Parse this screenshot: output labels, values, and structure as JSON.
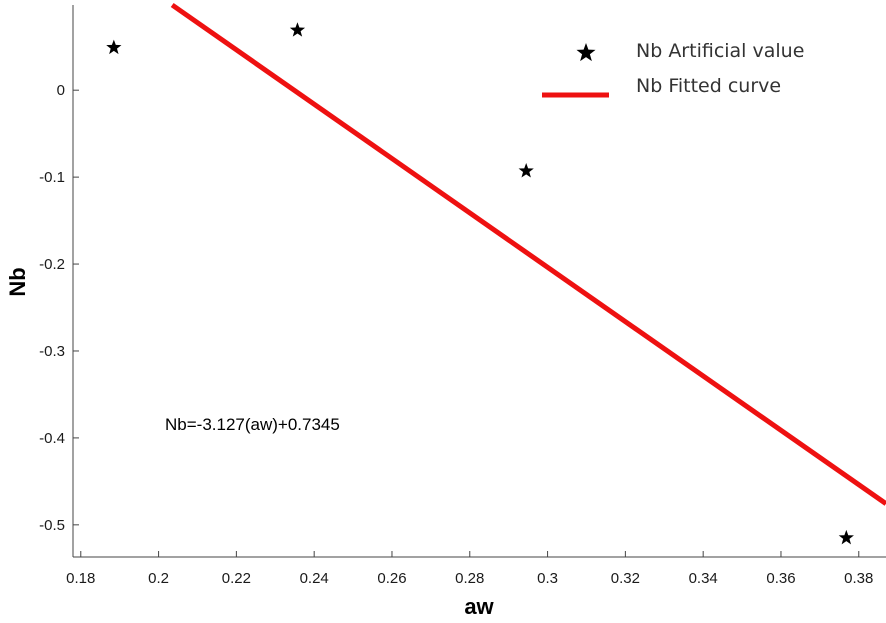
{
  "chart_data": {
    "type": "scatter",
    "xlabel": "aw",
    "ylabel": "Nb",
    "xlim": [
      0.178,
      0.387
    ],
    "ylim": [
      -0.537,
      0.098
    ],
    "x_ticks": [
      0.18,
      0.2,
      0.22,
      0.24,
      0.26,
      0.28,
      0.3,
      0.32,
      0.34,
      0.36,
      0.38
    ],
    "y_ticks": [
      0,
      -0.1,
      -0.2,
      -0.3,
      -0.4,
      -0.5
    ],
    "x_tick_labels": [
      "0.18",
      "0.2",
      "0.22",
      "0.24",
      "0.26",
      "0.28",
      "0.3",
      "0.32",
      "0.34",
      "0.36",
      "0.38"
    ],
    "y_tick_labels": [
      "0",
      "-0.1",
      "-0.2",
      "-0.3",
      "-0.4",
      "-0.5"
    ],
    "series": [
      {
        "name": "Nb Artificial value",
        "kind": "scatter",
        "marker": "star",
        "color": "#000000",
        "x": [
          0.1885,
          0.2357,
          0.2945,
          0.3768
        ],
        "y": [
          0.049,
          0.069,
          -0.093,
          -0.515
        ]
      },
      {
        "name": "Nb Fitted curve",
        "kind": "line",
        "color": "#ee1111",
        "x": [
          0.2035,
          0.387
        ],
        "y": [
          0.098,
          -0.4757
        ]
      }
    ],
    "annotation": "Nb=-3.127(aw)+0.7345",
    "legend_position": "top-right",
    "grid": false
  }
}
